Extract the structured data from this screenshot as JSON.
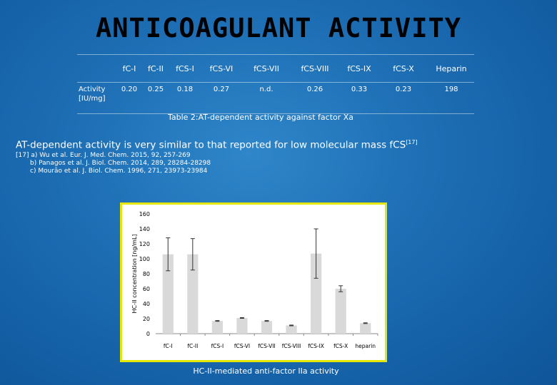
{
  "title": "ANTICOAGULANT ACTIVITY",
  "table": {
    "row_header": "Activity [IU/mg]",
    "columns": [
      "fC-I",
      "fC-II",
      "fCS-I",
      "fCS-VI",
      "fCS-VII",
      "fCS-VIII",
      "fCS-IX",
      "fCS-X",
      "Heparin"
    ],
    "values": [
      "0.20",
      "0.25",
      "0.18",
      "0.27",
      "n.d.",
      "0.26",
      "0.33",
      "0.23",
      "198"
    ],
    "caption": "Table 2:AT-dependent activity against factor Xa"
  },
  "statement": "AT-dependent activity is very similar to that reported for low molecular mass fCS",
  "statement_ref": "[17]",
  "references": [
    "[17] a) Wu et al. Eur. J. Med. Chem. 2015, 92, 257-269",
    "b) Panagos et al. J. Biol. Chem. 2014, 289, 28284-28298",
    "c) Mourão et al. J. Biol. Chem. 1996, 271, 23973-23984"
  ],
  "chart_data": {
    "type": "bar",
    "title": "",
    "xlabel": "",
    "ylabel": "HC-II concentration [ng/mL]",
    "ylim": [
      0,
      160
    ],
    "yticks": [
      0,
      20,
      40,
      60,
      80,
      100,
      120,
      140,
      160
    ],
    "categories": [
      "fC-I",
      "fC-II",
      "fCS-I",
      "fCS-VI",
      "fCS-VII",
      "fCS-VIII",
      "fCS-IX",
      "fCS-X",
      "heparin"
    ],
    "values": [
      106,
      106,
      17,
      21,
      17,
      11,
      107,
      60,
      14
    ],
    "errors": [
      22,
      21,
      0.5,
      0.5,
      0.5,
      0.5,
      33,
      4,
      0.5
    ],
    "bar_color": "#d9d9d9",
    "grid": false
  },
  "chart_caption": "HC-II-mediated anti-factor IIa activity",
  "colors": {
    "background": "#1e6fb5",
    "title": "#000000",
    "chart_border": "#e6e600",
    "text": "#ffffff"
  }
}
